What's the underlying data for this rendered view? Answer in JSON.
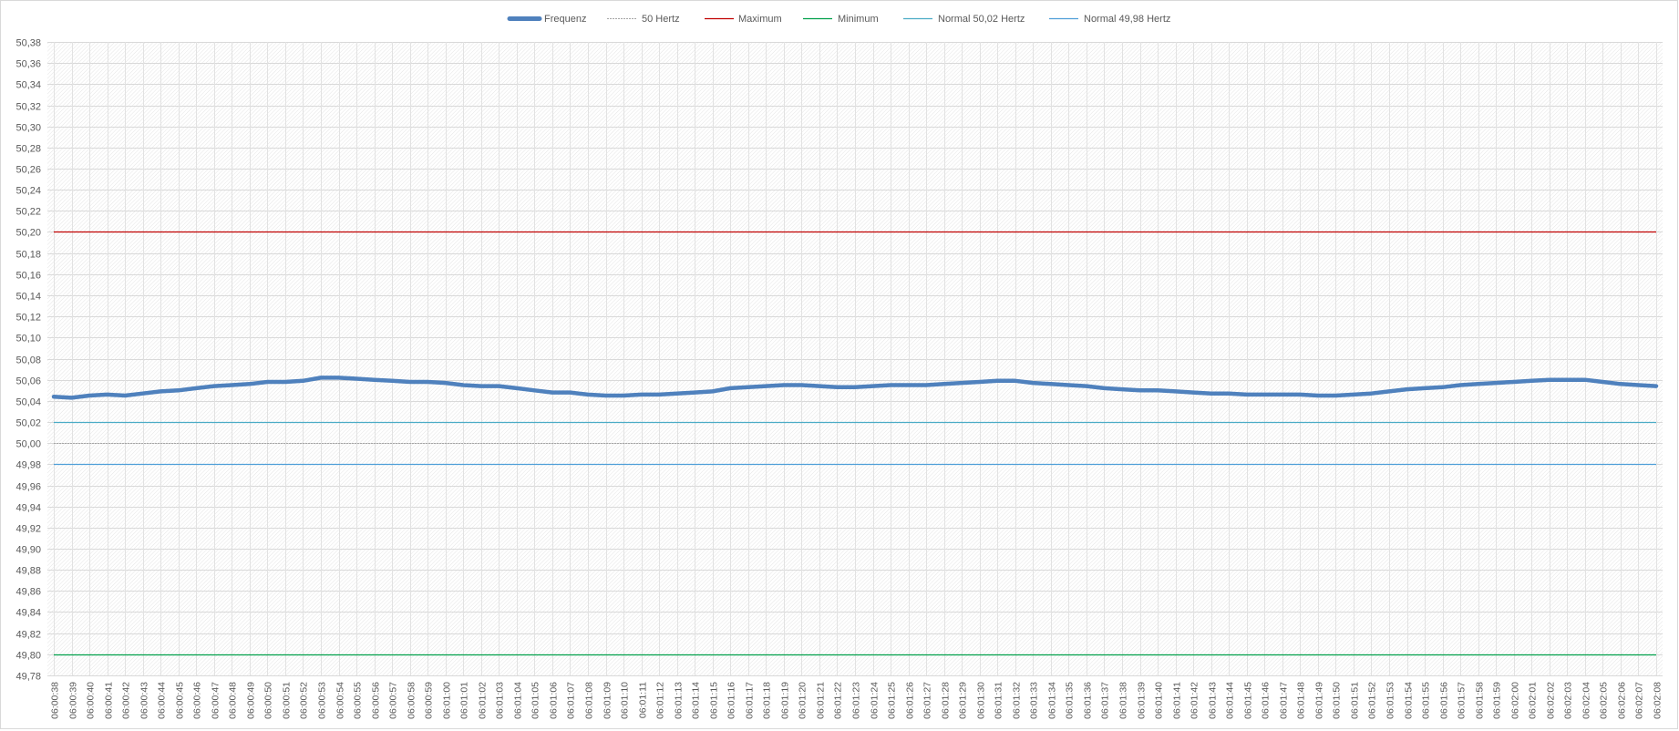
{
  "chart_data": {
    "type": "line",
    "title": "",
    "xlabel": "",
    "ylabel": "",
    "ylim": [
      49.78,
      50.38
    ],
    "y_tick_step": 0.02,
    "y_tick_labels": [
      "49,78",
      "49,80",
      "49,82",
      "49,84",
      "49,86",
      "49,88",
      "49,90",
      "49,92",
      "49,94",
      "49,96",
      "49,98",
      "50,00",
      "50,02",
      "50,04",
      "50,06",
      "50,08",
      "50,10",
      "50,12",
      "50,14",
      "50,16",
      "50,18",
      "50,20",
      "50,22",
      "50,24",
      "50,26",
      "50,28",
      "50,30",
      "50,32",
      "50,34",
      "50,36",
      "50,38"
    ],
    "grid": true,
    "legend_position": "top-center",
    "x": [
      "06:00:38",
      "06:00:39",
      "06:00:40",
      "06:00:41",
      "06:00:42",
      "06:00:43",
      "06:00:44",
      "06:00:45",
      "06:00:46",
      "06:00:47",
      "06:00:48",
      "06:00:49",
      "06:00:50",
      "06:00:51",
      "06:00:52",
      "06:00:53",
      "06:00:54",
      "06:00:55",
      "06:00:56",
      "06:00:57",
      "06:00:58",
      "06:00:59",
      "06:01:00",
      "06:01:01",
      "06:01:02",
      "06:01:03",
      "06:01:04",
      "06:01:05",
      "06:01:06",
      "06:01:07",
      "06:01:08",
      "06:01:09",
      "06:01:10",
      "06:01:11",
      "06:01:12",
      "06:01:13",
      "06:01:14",
      "06:01:15",
      "06:01:16",
      "06:01:17",
      "06:01:18",
      "06:01:19",
      "06:01:20",
      "06:01:21",
      "06:01:22",
      "06:01:23",
      "06:01:24",
      "06:01:25",
      "06:01:26",
      "06:01:27",
      "06:01:28",
      "06:01:29",
      "06:01:30",
      "06:01:31",
      "06:01:32",
      "06:01:33",
      "06:01:34",
      "06:01:35",
      "06:01:36",
      "06:01:37",
      "06:01:38",
      "06:01:39",
      "06:01:40",
      "06:01:41",
      "06:01:42",
      "06:01:43",
      "06:01:44",
      "06:01:45",
      "06:01:46",
      "06:01:47",
      "06:01:48",
      "06:01:49",
      "06:01:50",
      "06:01:51",
      "06:01:52",
      "06:01:53",
      "06:01:54",
      "06:01:55",
      "06:01:56",
      "06:01:57",
      "06:01:58",
      "06:01:59",
      "06:02:00",
      "06:02:01",
      "06:02:02",
      "06:02:03",
      "06:02:04",
      "06:02:05",
      "06:02:06",
      "06:02:07",
      "06:02:08"
    ],
    "series": [
      {
        "name": "Frequenz",
        "color": "#4f81bd",
        "style": "thick",
        "values": [
          50.044,
          50.043,
          50.045,
          50.046,
          50.045,
          50.047,
          50.049,
          50.05,
          50.052,
          50.054,
          50.055,
          50.056,
          50.058,
          50.058,
          50.059,
          50.062,
          50.062,
          50.061,
          50.06,
          50.059,
          50.058,
          50.058,
          50.057,
          50.055,
          50.054,
          50.054,
          50.052,
          50.05,
          50.048,
          50.048,
          50.046,
          50.045,
          50.045,
          50.046,
          50.046,
          50.047,
          50.048,
          50.049,
          50.052,
          50.053,
          50.054,
          50.055,
          50.055,
          50.054,
          50.053,
          50.053,
          50.054,
          50.055,
          50.055,
          50.055,
          50.056,
          50.057,
          50.058,
          50.059,
          50.059,
          50.057,
          50.056,
          50.055,
          50.054,
          50.052,
          50.051,
          50.05,
          50.05,
          50.049,
          50.048,
          50.047,
          50.047,
          50.046,
          50.046,
          50.046,
          50.046,
          50.045,
          50.045,
          50.046,
          50.047,
          50.049,
          50.051,
          50.052,
          50.053,
          50.055,
          50.056,
          50.057,
          50.058,
          50.059,
          50.06,
          50.06,
          50.06,
          50.058,
          50.056,
          50.055,
          50.054
        ]
      },
      {
        "name": "50 Hertz",
        "color": "#a6a6a6",
        "style": "dotted",
        "constant": 50.0
      },
      {
        "name": "Maximum",
        "color": "#c00000",
        "style": "solid",
        "constant": 50.2
      },
      {
        "name": "Minimum",
        "color": "#00a04a",
        "style": "solid",
        "constant": 49.8
      },
      {
        "name": "Normal 50,02 Hertz",
        "color": "#4bacc6",
        "style": "solid",
        "constant": 50.02
      },
      {
        "name": "Normal 49,98 Hertz",
        "color": "#4f9fd8",
        "style": "solid",
        "constant": 49.98
      }
    ]
  }
}
